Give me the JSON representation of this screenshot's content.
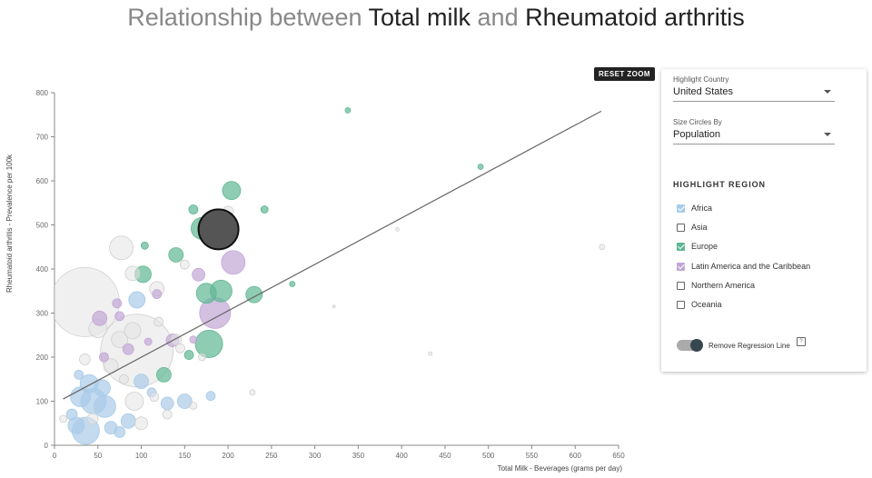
{
  "title": {
    "prefix": "Relationship between ",
    "var1": "Total milk",
    "mid": " and ",
    "var2": "Rheumatoid arthritis"
  },
  "reset_zoom": "RESET ZOOM",
  "controls": {
    "highlight_country": {
      "label": "Highlight Country",
      "value": "United States"
    },
    "size_by": {
      "label": "Size Circles By",
      "value": "Population"
    },
    "highlight_region_title": "HIGHLIGHT REGION",
    "regions": [
      {
        "label": "Africa",
        "checked": true,
        "color": "#a9cbe8"
      },
      {
        "label": "Asia",
        "checked": false,
        "color": "#bdbdbd"
      },
      {
        "label": "Europe",
        "checked": true,
        "color": "#5fb794"
      },
      {
        "label": "Latin America and the Caribbean",
        "checked": true,
        "color": "#c2a6d6"
      },
      {
        "label": "Northern America",
        "checked": false,
        "color": "#333333"
      },
      {
        "label": "Oceania",
        "checked": false,
        "color": "#bdbdbd"
      }
    ],
    "regression_toggle": {
      "label": "Remove Regression Line",
      "on": true
    },
    "help_icon": "?"
  },
  "chart_data": {
    "type": "scatter",
    "xlabel": "Total Milk - Beverages (grams per day)",
    "ylabel": "Rheumatoid arthritis - Prevalence per 100k",
    "xlim": [
      0,
      650
    ],
    "ylim": [
      0,
      800
    ],
    "xticks": [
      0,
      50,
      100,
      150,
      200,
      250,
      300,
      350,
      400,
      450,
      500,
      550,
      600,
      650
    ],
    "yticks": [
      0,
      100,
      200,
      300,
      400,
      500,
      600,
      700,
      800
    ],
    "regression": {
      "x1": 10,
      "y1": 105,
      "x2": 630,
      "y2": 758
    },
    "highlighted": {
      "name": "United States",
      "x": 189,
      "y": 490,
      "r": 22
    },
    "colors": {
      "Africa": "#a9cbe8",
      "Europe": "#5fb794",
      "LatAm": "#c2a6d6",
      "Other": "#e3e3e3",
      "Highlight": "#555555"
    },
    "points": [
      {
        "x": 35,
        "y": 325,
        "r": 38,
        "g": "Other"
      },
      {
        "x": 95,
        "y": 215,
        "r": 40,
        "g": "Other"
      },
      {
        "x": 77,
        "y": 448,
        "r": 13,
        "g": "Other"
      },
      {
        "x": 36,
        "y": 33,
        "r": 15,
        "g": "Africa"
      },
      {
        "x": 45,
        "y": 100,
        "r": 14,
        "g": "Africa"
      },
      {
        "x": 58,
        "y": 88,
        "r": 12,
        "g": "Africa"
      },
      {
        "x": 30,
        "y": 110,
        "r": 11,
        "g": "Africa"
      },
      {
        "x": 40,
        "y": 140,
        "r": 10,
        "g": "Africa"
      },
      {
        "x": 25,
        "y": 45,
        "r": 9,
        "g": "Africa"
      },
      {
        "x": 55,
        "y": 130,
        "r": 9,
        "g": "Africa"
      },
      {
        "x": 85,
        "y": 55,
        "r": 8,
        "g": "Africa"
      },
      {
        "x": 95,
        "y": 330,
        "r": 9,
        "g": "Africa"
      },
      {
        "x": 100,
        "y": 145,
        "r": 8,
        "g": "Africa"
      },
      {
        "x": 150,
        "y": 100,
        "r": 8,
        "g": "Africa"
      },
      {
        "x": 130,
        "y": 95,
        "r": 7,
        "g": "Africa"
      },
      {
        "x": 65,
        "y": 40,
        "r": 7,
        "g": "Africa"
      },
      {
        "x": 20,
        "y": 70,
        "r": 6,
        "g": "Africa"
      },
      {
        "x": 75,
        "y": 30,
        "r": 6,
        "g": "Africa"
      },
      {
        "x": 180,
        "y": 112,
        "r": 5,
        "g": "Africa"
      },
      {
        "x": 28,
        "y": 160,
        "r": 5,
        "g": "Africa"
      },
      {
        "x": 112,
        "y": 120,
        "r": 5,
        "g": "Africa"
      },
      {
        "x": 204,
        "y": 578,
        "r": 10,
        "g": "Europe"
      },
      {
        "x": 170,
        "y": 492,
        "r": 12,
        "g": "Europe"
      },
      {
        "x": 192,
        "y": 350,
        "r": 12,
        "g": "Europe"
      },
      {
        "x": 175,
        "y": 345,
        "r": 11,
        "g": "Europe"
      },
      {
        "x": 178,
        "y": 230,
        "r": 15,
        "g": "Europe"
      },
      {
        "x": 230,
        "y": 342,
        "r": 9,
        "g": "Europe"
      },
      {
        "x": 102,
        "y": 388,
        "r": 9,
        "g": "Europe"
      },
      {
        "x": 140,
        "y": 432,
        "r": 8,
        "g": "Europe"
      },
      {
        "x": 126,
        "y": 160,
        "r": 8,
        "g": "Europe"
      },
      {
        "x": 160,
        "y": 535,
        "r": 5,
        "g": "Europe"
      },
      {
        "x": 242,
        "y": 535,
        "r": 4,
        "g": "Europe"
      },
      {
        "x": 338,
        "y": 760,
        "r": 3,
        "g": "Europe"
      },
      {
        "x": 491,
        "y": 632,
        "r": 3,
        "g": "Europe"
      },
      {
        "x": 274,
        "y": 366,
        "r": 3,
        "g": "Europe"
      },
      {
        "x": 104,
        "y": 453,
        "r": 4,
        "g": "Europe"
      },
      {
        "x": 155,
        "y": 205,
        "r": 5,
        "g": "Europe"
      },
      {
        "x": 185,
        "y": 300,
        "r": 17,
        "g": "LatAm"
      },
      {
        "x": 206,
        "y": 415,
        "r": 13,
        "g": "LatAm"
      },
      {
        "x": 166,
        "y": 387,
        "r": 7,
        "g": "LatAm"
      },
      {
        "x": 136,
        "y": 238,
        "r": 7,
        "g": "LatAm"
      },
      {
        "x": 52,
        "y": 288,
        "r": 8,
        "g": "LatAm"
      },
      {
        "x": 75,
        "y": 293,
        "r": 5,
        "g": "LatAm"
      },
      {
        "x": 118,
        "y": 343,
        "r": 5,
        "g": "LatAm"
      },
      {
        "x": 85,
        "y": 218,
        "r": 6,
        "g": "LatAm"
      },
      {
        "x": 57,
        "y": 200,
        "r": 5,
        "g": "LatAm"
      },
      {
        "x": 108,
        "y": 235,
        "r": 4,
        "g": "LatAm"
      },
      {
        "x": 72,
        "y": 322,
        "r": 5,
        "g": "LatAm"
      },
      {
        "x": 160,
        "y": 240,
        "r": 4,
        "g": "LatAm"
      },
      {
        "x": 75,
        "y": 240,
        "r": 9,
        "g": "Other"
      },
      {
        "x": 50,
        "y": 265,
        "r": 10,
        "g": "Other"
      },
      {
        "x": 90,
        "y": 260,
        "r": 9,
        "g": "Other"
      },
      {
        "x": 92,
        "y": 100,
        "r": 10,
        "g": "Other"
      },
      {
        "x": 90,
        "y": 390,
        "r": 8,
        "g": "Other"
      },
      {
        "x": 118,
        "y": 355,
        "r": 8,
        "g": "Other"
      },
      {
        "x": 140,
        "y": 240,
        "r": 6,
        "g": "Other"
      },
      {
        "x": 65,
        "y": 180,
        "r": 8,
        "g": "Other"
      },
      {
        "x": 100,
        "y": 50,
        "r": 7,
        "g": "Other"
      },
      {
        "x": 130,
        "y": 70,
        "r": 5,
        "g": "Other"
      },
      {
        "x": 35,
        "y": 195,
        "r": 6,
        "g": "Other"
      },
      {
        "x": 44,
        "y": 60,
        "r": 6,
        "g": "Other"
      },
      {
        "x": 145,
        "y": 220,
        "r": 5,
        "g": "Other"
      },
      {
        "x": 200,
        "y": 530,
        "r": 6,
        "g": "Other"
      },
      {
        "x": 150,
        "y": 410,
        "r": 5,
        "g": "Other"
      },
      {
        "x": 80,
        "y": 150,
        "r": 5,
        "g": "Other"
      },
      {
        "x": 115,
        "y": 110,
        "r": 5,
        "g": "Other"
      },
      {
        "x": 10,
        "y": 60,
        "r": 4,
        "g": "Other"
      },
      {
        "x": 120,
        "y": 280,
        "r": 5,
        "g": "Other"
      },
      {
        "x": 228,
        "y": 120,
        "r": 3,
        "g": "Other"
      },
      {
        "x": 395,
        "y": 490,
        "r": 2,
        "g": "Other"
      },
      {
        "x": 631,
        "y": 450,
        "r": 3,
        "g": "Other"
      },
      {
        "x": 433,
        "y": 208,
        "r": 2,
        "g": "Other"
      },
      {
        "x": 322,
        "y": 315,
        "r": 1.5,
        "g": "Other"
      },
      {
        "x": 160,
        "y": 90,
        "r": 4,
        "g": "Other"
      },
      {
        "x": 170,
        "y": 200,
        "r": 4,
        "g": "Other"
      }
    ]
  }
}
